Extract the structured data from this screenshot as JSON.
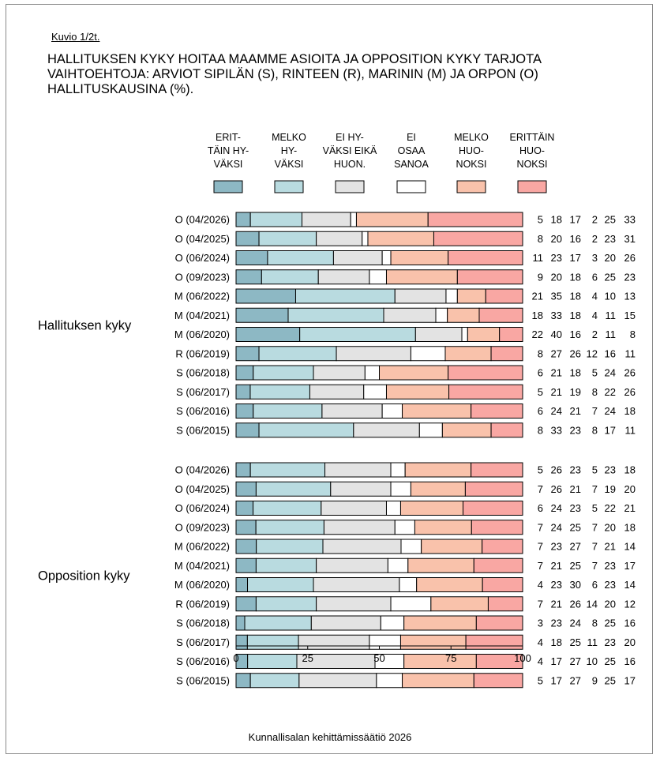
{
  "figure_number": "Kuvio 1/2t.",
  "title_lines": [
    "HALLITUKSEN KYKY HOITAA MAAMME ASIOITA JA OPPOSITION KYKY TARJOTA",
    "VAIHTOEHTOJA: ARVIOT SIPILÄN (S), RINTEEN (R), MARININ (M) JA ORPON (O)",
    "HALLITUSKAUSINA (%)."
  ],
  "source": "Kunnallisalan kehittämissäätiö 2026",
  "chart_data": {
    "type": "bar",
    "orientation": "horizontal",
    "stacked": true,
    "xlim": [
      0,
      100
    ],
    "xticks": [
      0,
      25,
      50,
      75,
      100
    ],
    "grid": false,
    "legend_position": "top",
    "legend": [
      {
        "label_lines": [
          "ERIT-",
          "TÄIN HY-",
          "VÄKSI"
        ],
        "color": "#8db8c4"
      },
      {
        "label_lines": [
          "MELKO",
          "HY-",
          "VÄKSI"
        ],
        "color": "#b9dbe0"
      },
      {
        "label_lines": [
          "EI HY-",
          "VÄKSI EIKÄ",
          "HUON."
        ],
        "color": "#e3e3e3"
      },
      {
        "label_lines": [
          "EI",
          "OSAA",
          "SANOA"
        ],
        "color": "#ffffff"
      },
      {
        "label_lines": [
          "MELKO",
          "HUO-",
          "NOKSI"
        ],
        "color": "#f9c2ab"
      },
      {
        "label_lines": [
          "ERITTÄIN",
          "HUO-",
          "NOKSI"
        ],
        "color": "#f9a7a3"
      }
    ],
    "groups": [
      {
        "name": "Hallituksen kyky",
        "categories": [
          "O (04/2026)",
          "O (04/2025)",
          "O (06/2024)",
          "O (09/2023)",
          "M (06/2022)",
          "M (04/2021)",
          "M (06/2020)",
          "R (06/2019)",
          "S (06/2018)",
          "S (06/2017)",
          "S (06/2016)",
          "S (06/2015)"
        ],
        "values": [
          [
            5,
            18,
            17,
            2,
            25,
            33
          ],
          [
            8,
            20,
            16,
            2,
            23,
            31
          ],
          [
            11,
            23,
            17,
            3,
            20,
            26
          ],
          [
            9,
            20,
            18,
            6,
            25,
            23
          ],
          [
            21,
            35,
            18,
            4,
            10,
            13
          ],
          [
            18,
            33,
            18,
            4,
            11,
            15
          ],
          [
            22,
            40,
            16,
            2,
            11,
            8
          ],
          [
            8,
            27,
            26,
            12,
            16,
            11
          ],
          [
            6,
            21,
            18,
            5,
            24,
            26
          ],
          [
            5,
            21,
            19,
            8,
            22,
            26
          ],
          [
            6,
            24,
            21,
            7,
            24,
            18
          ],
          [
            8,
            33,
            23,
            8,
            17,
            11
          ]
        ]
      },
      {
        "name": "Opposition kyky",
        "categories": [
          "O (04/2026)",
          "O (04/2025)",
          "O (06/2024)",
          "O (09/2023)",
          "M (06/2022)",
          "M (04/2021)",
          "M (06/2020)",
          "R (06/2019)",
          "S (06/2018)",
          "S (06/2017)",
          "S (06/2016)",
          "S (06/2015)"
        ],
        "values": [
          [
            5,
            26,
            23,
            5,
            23,
            18
          ],
          [
            7,
            26,
            21,
            7,
            19,
            20
          ],
          [
            6,
            24,
            23,
            5,
            22,
            21
          ],
          [
            7,
            24,
            25,
            7,
            20,
            18
          ],
          [
            7,
            23,
            27,
            7,
            21,
            14
          ],
          [
            7,
            21,
            25,
            7,
            23,
            17
          ],
          [
            4,
            23,
            30,
            6,
            23,
            14
          ],
          [
            7,
            21,
            26,
            14,
            20,
            12
          ],
          [
            3,
            23,
            24,
            8,
            25,
            16
          ],
          [
            4,
            18,
            25,
            11,
            23,
            20
          ],
          [
            4,
            17,
            27,
            10,
            25,
            16
          ],
          [
            5,
            17,
            27,
            9,
            25,
            17
          ]
        ]
      }
    ]
  }
}
